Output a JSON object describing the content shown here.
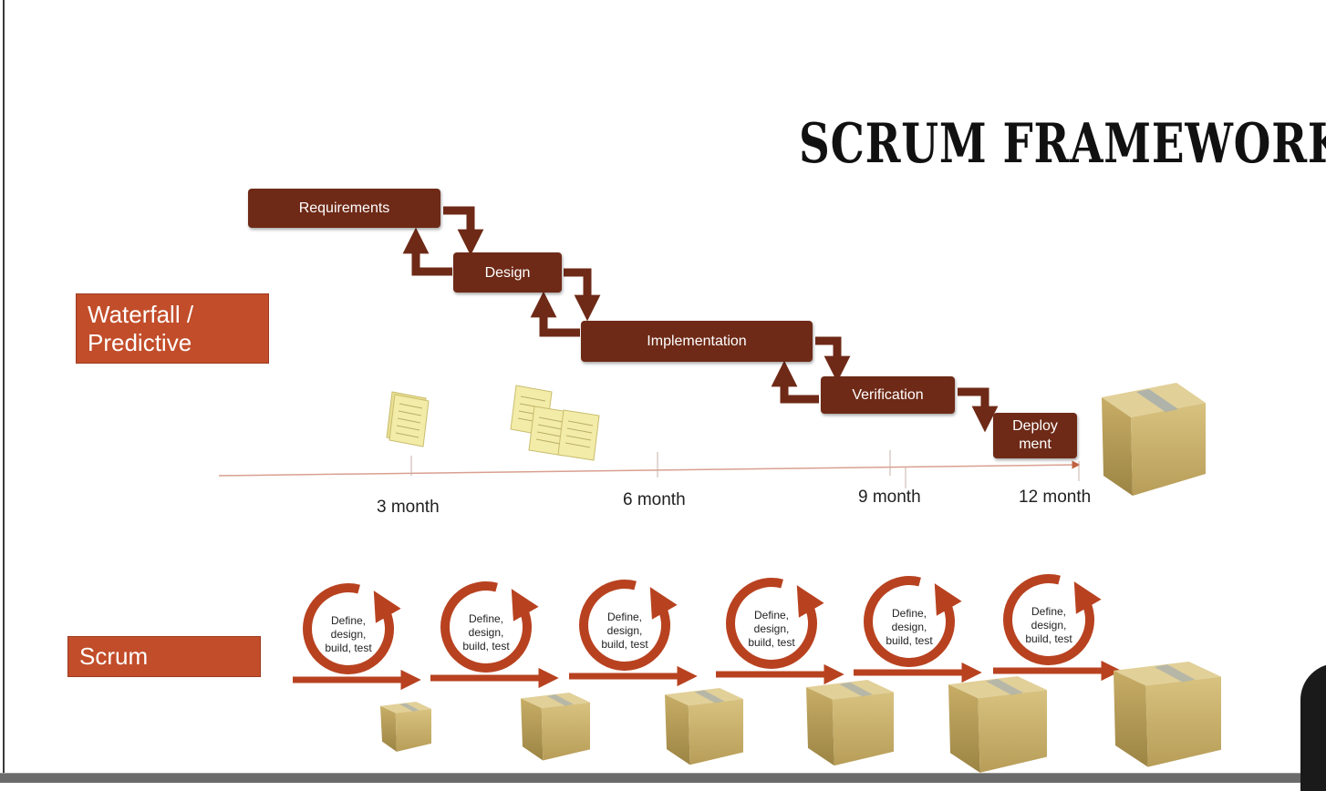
{
  "title": "SCRUM FRAMEWORK",
  "labels": {
    "waterfall": "Waterfall / Predictive",
    "scrum": "Scrum"
  },
  "phases": [
    "Requirements",
    "Design",
    "Implementation",
    "Verification",
    "Deploy\nment"
  ],
  "timeline": {
    "months": [
      "3 month",
      "6 month",
      "9 month",
      "12 month"
    ]
  },
  "scrum_cycle": {
    "text": "Define, design, build, test",
    "count": 6
  },
  "colors": {
    "phase": "#6e2a17",
    "label": "#c24d2a",
    "cycle": "#b84220",
    "axis": "#d9a090",
    "box_light": "#e2d099",
    "box_mid": "#c9b26e",
    "box_dark": "#a8904f",
    "paper": "#f3eca8"
  }
}
